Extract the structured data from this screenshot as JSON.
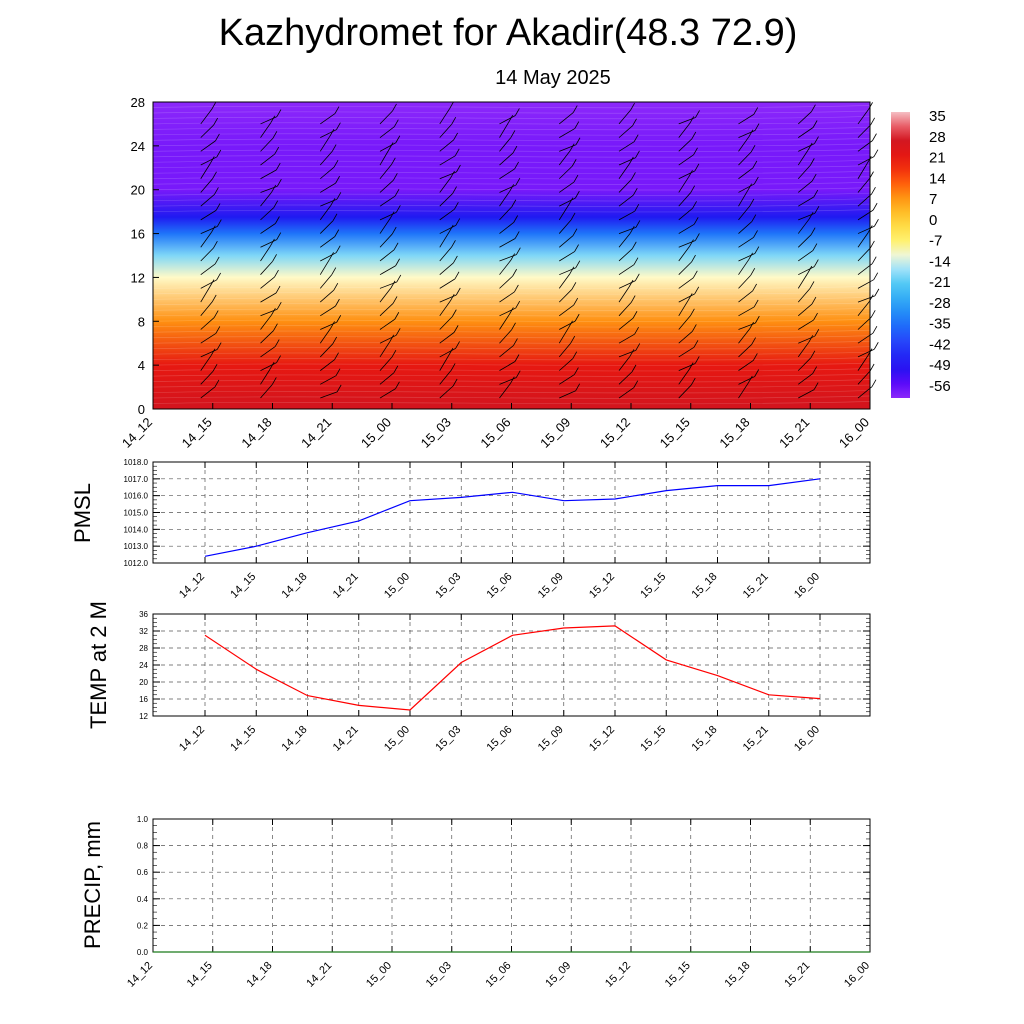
{
  "title": "Kazhydromet for Akadir(48.3 72.9)",
  "subtitle": "14 May 2025",
  "time_labels": [
    "14_12",
    "14_15",
    "14_18",
    "14_21",
    "15_00",
    "15_03",
    "15_06",
    "15_09",
    "15_12",
    "15_15",
    "15_18",
    "15_21",
    "16_00"
  ],
  "chart_data": [
    {
      "type": "heatmap",
      "name": "temperature-height cross-section",
      "x": [
        "14_12",
        "14_15",
        "14_18",
        "14_21",
        "15_00",
        "15_03",
        "15_06",
        "15_09",
        "15_12",
        "15_15",
        "15_18",
        "15_21",
        "16_00"
      ],
      "ylim": [
        0,
        28
      ],
      "y_ticks": [
        0,
        4,
        8,
        12,
        16,
        20,
        24,
        28
      ],
      "colorbar_labels": [
        "35",
        "28",
        "21",
        "14",
        "7",
        "0",
        "-7",
        "-14",
        "-21",
        "-28",
        "-35",
        "-42",
        "-49",
        "-56"
      ],
      "colorbar_range": [
        -60,
        38
      ],
      "temperature_profile": [
        {
          "y": 0,
          "t": 28
        },
        {
          "y": 4,
          "t": 22
        },
        {
          "y": 8,
          "t": 9
        },
        {
          "y": 12,
          "t": -10
        },
        {
          "y": 14,
          "t": -18
        },
        {
          "y": 16,
          "t": -34
        },
        {
          "y": 17.5,
          "t": -48
        },
        {
          "y": 20,
          "t": -58
        },
        {
          "y": 24,
          "t": -58
        },
        {
          "y": 28,
          "t": -60
        }
      ],
      "grid": false
    },
    {
      "type": "line",
      "ylabel": "PMSL",
      "x": [
        "14_12",
        "14_15",
        "14_18",
        "14_21",
        "15_00",
        "15_03",
        "15_06",
        "15_09",
        "15_12",
        "15_15",
        "15_18",
        "15_21",
        "16_00"
      ],
      "ylim": [
        1012.0,
        1018.0
      ],
      "y_ticks": [
        "1012.0",
        "1013.0",
        "1014.0",
        "1015.0",
        "1016.0",
        "1017.0",
        "1018.0"
      ],
      "series": [
        {
          "values": [
            1012.4,
            1013.0,
            1013.8,
            1014.5,
            1015.7,
            1015.9,
            1016.2,
            1015.7,
            1015.8,
            1016.3,
            1016.6,
            1016.6,
            1017.0
          ],
          "color": "#0000ff"
        }
      ],
      "grid": true
    },
    {
      "type": "line",
      "ylabel": "TEMP at 2 M",
      "x": [
        "14_12",
        "14_15",
        "14_18",
        "14_21",
        "15_00",
        "15_03",
        "15_06",
        "15_09",
        "15_12",
        "15_15",
        "15_18",
        "15_21",
        "16_00"
      ],
      "ylim": [
        12,
        36
      ],
      "y_ticks": [
        "12",
        "16",
        "20",
        "24",
        "28",
        "32",
        "36"
      ],
      "series": [
        {
          "values": [
            31.0,
            23.0,
            16.8,
            14.5,
            13.4,
            24.6,
            31.0,
            32.7,
            33.2,
            25.2,
            21.5,
            17.0,
            16.1
          ],
          "color": "#ff0000"
        }
      ],
      "grid": true
    },
    {
      "type": "line",
      "ylabel": "PRECIP, mm",
      "x": [
        "14_12",
        "14_15",
        "14_18",
        "14_21",
        "15_00",
        "15_03",
        "15_06",
        "15_09",
        "15_12",
        "15_15",
        "15_18",
        "15_21",
        "16_00"
      ],
      "ylim": [
        0.0,
        1.0
      ],
      "y_ticks": [
        "0.0",
        "0.2",
        "0.4",
        "0.6",
        "0.8",
        "1.0"
      ],
      "series": [
        {
          "values": [
            0,
            0,
            0,
            0,
            0,
            0,
            0,
            0,
            0,
            0,
            0,
            0,
            0
          ],
          "color": "#1a7a1a"
        }
      ],
      "grid": true
    }
  ]
}
